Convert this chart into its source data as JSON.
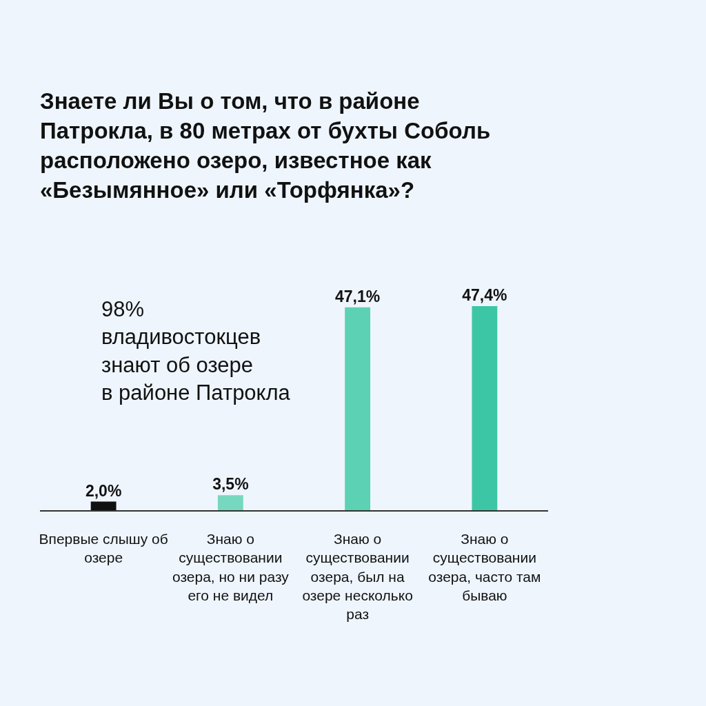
{
  "chart_data": {
    "type": "bar",
    "title": "Знаете ли Вы о том, что в районе Патрокла, в 80 метрах от бухты Соболь расположено озеро, известное как «Безымянное» или «Торфянка»?",
    "categories": [
      "Впервые слышу об озере",
      "Знаю о существовании озера, но ни разу его не видел",
      "Знаю о существовании озера, был на озере несколько раз",
      "Знаю о существовании озера, часто там бываю"
    ],
    "values": [
      2.0,
      3.5,
      47.1,
      47.4
    ],
    "colors": [
      "#111111",
      "#76d8bf",
      "#5cd1b4",
      "#3dc6a5"
    ],
    "value_labels": [
      "2,0%",
      "3,5%",
      "47,1%",
      "47,4%"
    ],
    "annotations": [
      "98%\nвладивостокцев\nзнают об озере\nв районе Патрокла"
    ],
    "grid": false,
    "tick_labels": "x"
  }
}
